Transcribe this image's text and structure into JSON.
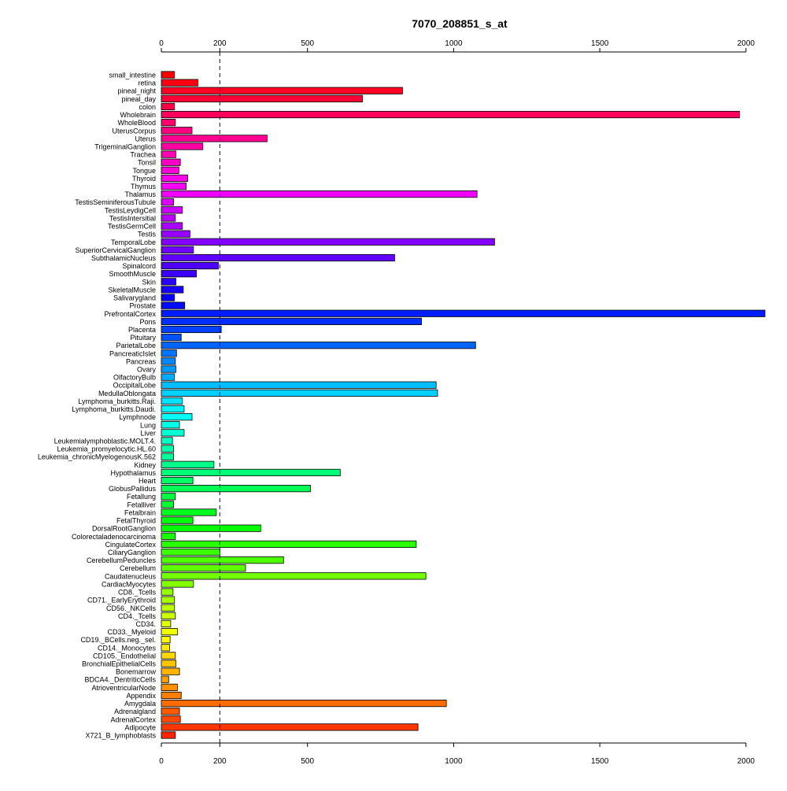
{
  "chart_data": {
    "type": "bar",
    "orientation": "horizontal",
    "title": "7070_208851_s_at",
    "xlabel": "",
    "ylabel": "",
    "xlim": [
      0,
      2065
    ],
    "x_ticks": [
      0,
      200,
      500,
      1000,
      1500,
      2000
    ],
    "reference_line": 200,
    "grid": false,
    "axes": "top and bottom",
    "categories": [
      "small_intestine",
      "retina",
      "pineal_night",
      "pineal_day",
      "colon",
      "Wholebrain",
      "WholeBlood",
      "UterusCorpus",
      "Uterus",
      "TrigeminalGanglion",
      "Trachea",
      "Tonsil",
      "Tongue",
      "Thyroid",
      "Thymus",
      "Thalamus",
      "TestisSeminiferousTubule",
      "TestisLeydigCell",
      "TestisIntersitial",
      "TestisGermCell",
      "Testis",
      "TemporalLobe",
      "SuperiorCervicalGanglion",
      "SubthalamicNucleus",
      "Spinalcord",
      "SmoothMuscle",
      "Skin",
      "SkeletalMuscle",
      "Salivarygland",
      "Prostate",
      "PrefrontalCortex",
      "Pons",
      "Placenta",
      "Pituitary",
      "ParietalLobe",
      "PancreaticIslet",
      "Pancreas",
      "Ovary",
      "OlfactoryBulb",
      "OccipitalLobe",
      "MedullaOblongata",
      "Lymphoma_burkitts.Raji.",
      "Lymphoma_burkitts.Daudi.",
      "Lymphnode",
      "Lung",
      "Liver",
      "Leukemialymphoblastic.MOLT.4.",
      "Leukemia_promyelocytic.HL.60",
      "Leukemia_chronicMyelogenousK.562",
      "Kidney",
      "Hypothalamus",
      "Heart",
      "GlobusPallidus",
      "Fetallung",
      "Fetalliver",
      "Fetalbrain",
      "FetalThyroid",
      "DorsalRootGanglion",
      "Colorectaladenocarcinoma",
      "CingulateCortex",
      "CiliaryGanglion",
      "CerebellumPeduncles",
      "Cerebellum",
      "Caudatenucleus",
      "CardiacMyocytes",
      "CD8._Tcells",
      "CD71._EarlyErythroid",
      "CD56._NKCells",
      "CD4._Tcells",
      "CD34.",
      "CD33._Myeloid",
      "CD19._BCells.neg._sel.",
      "CD14._Monocytes",
      "CD105._Endothelial",
      "BronchialEpithelialCells",
      "Bonemarrow",
      "BDCA4._DentriticCells",
      "AtrioventricularNode",
      "Appendix",
      "Amygdala",
      "Adrenalgland",
      "AdrenalCortex",
      "Adipocyte",
      "X721_B_lymphoblasts"
    ],
    "values": [
      45,
      125,
      825,
      688,
      45,
      1978,
      48,
      105,
      362,
      142,
      50,
      65,
      60,
      90,
      85,
      1080,
      42,
      72,
      48,
      72,
      98,
      1140,
      110,
      798,
      195,
      120,
      50,
      75,
      45,
      80,
      2065,
      890,
      205,
      68,
      1075,
      52,
      48,
      50,
      45,
      940,
      945,
      72,
      78,
      105,
      62,
      78,
      38,
      42,
      42,
      180,
      612,
      108,
      510,
      48,
      42,
      188,
      108,
      340,
      48,
      872,
      200,
      418,
      288,
      905,
      110,
      40,
      45,
      45,
      48,
      32,
      55,
      30,
      28,
      48,
      50,
      62,
      25,
      55,
      68,
      975,
      62,
      65,
      878,
      48
    ],
    "bar_colors": [
      "#FF0000",
      "#FF0012",
      "#FF0024",
      "#FF0036",
      "#FF0048",
      "#FF005A",
      "#FF006C",
      "#FF007E",
      "#FF0090",
      "#FF00A2",
      "#FF00B4",
      "#FF00C6",
      "#FF00D8",
      "#FF00EA",
      "#FF00FC",
      "#F000FF",
      "#DE00FF",
      "#CC00FF",
      "#BA00FF",
      "#A800FF",
      "#9600FF",
      "#8400FF",
      "#7200FF",
      "#6000FF",
      "#4E00FF",
      "#3C00FF",
      "#2A00FF",
      "#1800FF",
      "#0600FF",
      "#000AFF",
      "#001CFF",
      "#002EFF",
      "#0040FF",
      "#0052FF",
      "#0064FF",
      "#0076FF",
      "#0088FF",
      "#009AFF",
      "#00ACFF",
      "#00BEFF",
      "#00D0FF",
      "#00E2FF",
      "#00F4FF",
      "#00FFF6",
      "#00FFE4",
      "#00FFD2",
      "#00FFC0",
      "#00FFAE",
      "#00FF9C",
      "#00FF8A",
      "#00FF78",
      "#00FF66",
      "#00FF54",
      "#00FF42",
      "#00FF30",
      "#00FF1E",
      "#00FF0C",
      "#06FF00",
      "#18FF00",
      "#2AFF00",
      "#3CFF00",
      "#4EFF00",
      "#60FF00",
      "#72FF00",
      "#84FF00",
      "#96FF00",
      "#A8FF00",
      "#BAFF00",
      "#CCFF00",
      "#DEFF00",
      "#F0FF00",
      "#FFFC00",
      "#FFEA00",
      "#FFD800",
      "#FFC600",
      "#FFB400",
      "#FFA200",
      "#FF9000",
      "#FF7E00",
      "#FF6C00",
      "#FF5A00",
      "#FF4800",
      "#FF3600",
      "#FF2400"
    ]
  }
}
